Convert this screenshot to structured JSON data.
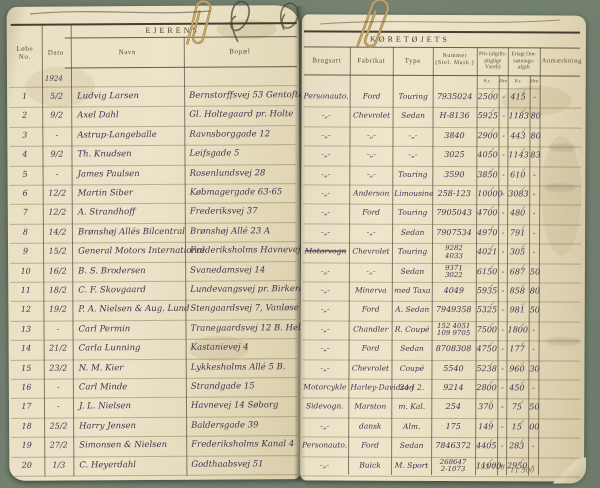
{
  "colors": {
    "background": "#6f7c6d",
    "paper": "#e9e0c4",
    "ink": "#3c3550",
    "printed": "#5a4c33"
  },
  "left_page": {
    "title": "EJERENS",
    "columns": {
      "no": "Løbe No.",
      "dato": "Dato",
      "navn": "Navn",
      "bopael": "Bopæl"
    },
    "year_note": "1924",
    "rows": [
      {
        "no": "1",
        "dato": "5/2",
        "navn": "Ludvig Larsen",
        "bopael": "Bernstorffsvej 53  Gentofte"
      },
      {
        "no": "2",
        "dato": "9/2",
        "navn": "Axel Dahl",
        "bopael": "Gl. Holtegaard  pr. Holte"
      },
      {
        "no": "3",
        "dato": "-",
        "navn": "Astrup-Langeballe",
        "bopael": "Ravnsborggade 12"
      },
      {
        "no": "4",
        "dato": "9/2",
        "navn": "Th. Knudsen",
        "bopael": "Leifsgade 5"
      },
      {
        "no": "5",
        "dato": "-",
        "navn": "James Paulsen",
        "bopael": "Rosenlundsvej 28"
      },
      {
        "no": "6",
        "dato": "12/2",
        "navn": "Martin Siber",
        "bopael": "Købmagergade 63-65"
      },
      {
        "no": "7",
        "dato": "12/2",
        "navn": "A. Strandhoff",
        "bopael": "Frederiksvej 37"
      },
      {
        "no": "8",
        "dato": "14/2",
        "navn": "Brønshøj Allés Bilcentral",
        "bopael": "Brønshøj Allé 23 A"
      },
      {
        "no": "9",
        "dato": "15/2",
        "navn": "General Motors International",
        "bopael": "Frederiksholms Havnevej 8"
      },
      {
        "no": "10",
        "dato": "16/2",
        "navn": "B. S. Brodersen",
        "bopael": "Svanedamsvej 14"
      },
      {
        "no": "11",
        "dato": "18/2",
        "navn": "C. F. Skovgaard",
        "bopael": "Lundevangsvej pr. Birkerød"
      },
      {
        "no": "12",
        "dato": "19/2",
        "navn": "P. A. Nielsen & Aug. Lund",
        "bopael": "Stengaardsvej 7,  Vanløse"
      },
      {
        "no": "13",
        "dato": "-",
        "navn": "Carl Permin",
        "bopael": "Tranegaardsvej 12 B. Hellerup"
      },
      {
        "no": "14",
        "dato": "21/2",
        "navn": "Carla Lunning",
        "bopael": "Kastanievej 4"
      },
      {
        "no": "15",
        "dato": "23/2",
        "navn": "N. M. Kier",
        "bopael": "Lykkesholms Allé 5 B."
      },
      {
        "no": "16",
        "dato": "-",
        "navn": "Carl Minde",
        "bopael": "Strandgade 15"
      },
      {
        "no": "17",
        "dato": "-",
        "navn": "J. L. Nielsen",
        "bopael": "Havnevej 14  Søborg"
      },
      {
        "no": "18",
        "dato": "25/2",
        "navn": "Harry Jensen",
        "bopael": "Baldersgade 39"
      },
      {
        "no": "19",
        "dato": "27/2",
        "navn": "Simonsen & Nielsen",
        "bopael": "Frederiksholms Kanal 4"
      },
      {
        "no": "20",
        "dato": "1/3",
        "navn": "C. Heyerdahl",
        "bopael": "Godthaabsvej 51"
      }
    ]
  },
  "right_page": {
    "title": "KØRETØJETS",
    "columns": {
      "brugsart": "Brugsart",
      "fabrikat": "Fabrikat",
      "type": "Type",
      "nummer": "Nummer (Stel. Mask.)",
      "pris": "Pris (afgifts­pligtige Værdi)",
      "afgift": "Erlagt Om­sætnings­afgift",
      "anm": "Anmærkning",
      "kr": "Kr.",
      "ore": "Øre"
    },
    "rows": [
      {
        "brugsart": "Personauto.",
        "fabrikat": "Ford",
        "type": "Touring",
        "nummer": "7935024",
        "pris_kr": "2500",
        "pris_ore": "-",
        "afg_kr": "415",
        "afg_ore": "-",
        "struck": false
      },
      {
        "brugsart": "-„-",
        "fabrikat": "Chevrolet",
        "type": "Sedan",
        "nummer": "H-8136",
        "pris_kr": "5925",
        "pris_ore": "-",
        "afg_kr": "1183",
        "afg_ore": "80",
        "struck": false
      },
      {
        "brugsart": "-„-",
        "fabrikat": "-„-",
        "type": "-„-",
        "nummer": "3840",
        "pris_kr": "2900",
        "pris_ore": "-",
        "afg_kr": "443",
        "afg_ore": "80",
        "struck": false
      },
      {
        "brugsart": "-„-",
        "fabrikat": "-„-",
        "type": "-„-",
        "nummer": "3025",
        "pris_kr": "4050",
        "pris_ore": "-",
        "afg_kr": "1143",
        "afg_ore": "83",
        "struck": false
      },
      {
        "brugsart": "-„-",
        "fabrikat": "-„-",
        "type": "Touring",
        "nummer": "3590",
        "pris_kr": "3850",
        "pris_ore": "-",
        "afg_kr": "610",
        "afg_ore": "-",
        "struck": false
      },
      {
        "brugsart": "-„-",
        "fabrikat": "Anderson",
        "type": "Limousine",
        "nummer": "258-123",
        "pris_kr": "10000",
        "pris_ore": "-",
        "afg_kr": "3083",
        "afg_ore": "-",
        "struck": false
      },
      {
        "brugsart": "-„-",
        "fabrikat": "Ford",
        "type": "Touring",
        "nummer": "7905043",
        "pris_kr": "4700",
        "pris_ore": "-",
        "afg_kr": "480",
        "afg_ore": "-",
        "struck": false
      },
      {
        "brugsart": "-„-",
        "fabrikat": "-„-",
        "type": "Sedan",
        "nummer": "7907534",
        "pris_kr": "4970",
        "pris_ore": "-",
        "afg_kr": "791",
        "afg_ore": "-",
        "struck": false
      },
      {
        "brugsart": "Motorvogn",
        "fabrikat": "Chevrolet",
        "type": "Touring",
        "nummer": "9282\n4033",
        "pris_kr": "4021",
        "pris_ore": "-",
        "afg_kr": "305",
        "afg_ore": "-",
        "struck": true
      },
      {
        "brugsart": "-„-",
        "fabrikat": "-„-",
        "type": "Sedan",
        "nummer": "9371\n3022",
        "pris_kr": "6150",
        "pris_ore": "-",
        "afg_kr": "687",
        "afg_ore": "50",
        "struck": false
      },
      {
        "brugsart": "-„-",
        "fabrikat": "Minerva",
        "type": "med Taxa",
        "nummer": "4049",
        "pris_kr": "5935",
        "pris_ore": "-",
        "afg_kr": "858",
        "afg_ore": "80",
        "struck": false
      },
      {
        "brugsart": "-„-",
        "fabrikat": "Ford",
        "type": "A. Sedan",
        "nummer": "7949358",
        "pris_kr": "5325",
        "pris_ore": "-",
        "afg_kr": "981",
        "afg_ore": "50",
        "struck": false
      },
      {
        "brugsart": "-„-",
        "fabrikat": "Chandler",
        "type": "R. Coupé",
        "nummer": "152 4051\n109 9705",
        "pris_kr": "7500",
        "pris_ore": "-",
        "afg_kr": "1800",
        "afg_ore": "-",
        "struck": false
      },
      {
        "brugsart": "-„-",
        "fabrikat": "Ford",
        "type": "Sedan",
        "nummer": "8708308",
        "pris_kr": "4750",
        "pris_ore": "-",
        "afg_kr": "177",
        "afg_ore": "-",
        "struck": false
      },
      {
        "brugsart": "-„-",
        "fabrikat": "Chevrolet",
        "type": "Coupé",
        "nummer": "5540",
        "pris_kr": "5238",
        "pris_ore": "-",
        "afg_kr": "960",
        "afg_ore": "30",
        "struck": false
      },
      {
        "brugsart": "Motorcykle",
        "fabrikat": "Harley-Davidson",
        "type": "24 J 2.",
        "nummer": "9214",
        "pris_kr": "2800",
        "pris_ore": "-",
        "afg_kr": "450",
        "afg_ore": "-",
        "struck": false
      },
      {
        "brugsart": "Sidevogn.",
        "fabrikat": "Marston",
        "type": "m. Kal.",
        "nummer": "254",
        "pris_kr": "370",
        "pris_ore": "-",
        "afg_kr": "75",
        "afg_ore": "50",
        "struck": false
      },
      {
        "brugsart": "-„-",
        "fabrikat": "dansk",
        "type": "Alm.",
        "nummer": "175",
        "pris_kr": "149",
        "pris_ore": "-",
        "afg_kr": "15",
        "afg_ore": "00",
        "struck": false
      },
      {
        "brugsart": "Personauto.",
        "fabrikat": "Ford",
        "type": "Sedan",
        "nummer": "7846372",
        "pris_kr": "4405",
        "pris_ore": "-",
        "afg_kr": "283",
        "afg_ore": "-",
        "struck": false
      },
      {
        "brugsart": "-„-",
        "fabrikat": "Buick",
        "type": "M. Sport",
        "nummer": "268647\n2-1073",
        "pris_kr": "11000",
        "pris_ore": "-",
        "afg_kr": "2950",
        "afg_ore": "-",
        "struck": false
      }
    ],
    "pencil_notes": [
      "193 708",
      "11 500"
    ]
  },
  "marks": {
    "tick": "✓"
  }
}
